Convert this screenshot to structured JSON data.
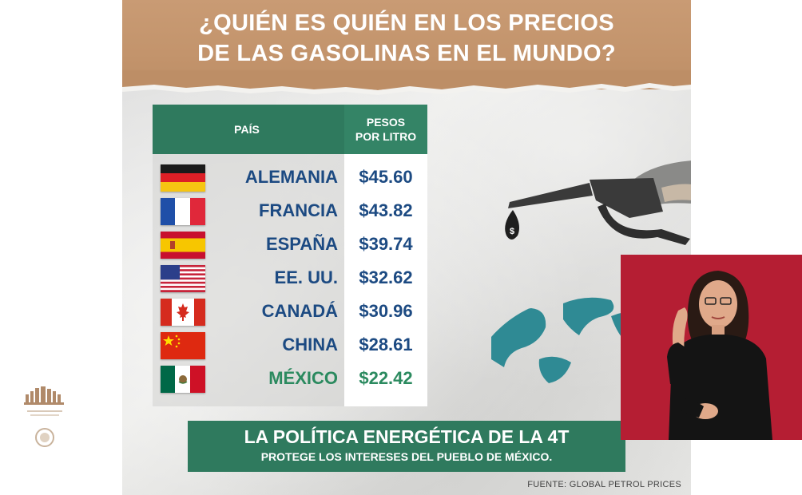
{
  "slide": {
    "title_line1": "¿QUIÉN ES QUIÉN EN LOS PRECIOS",
    "title_line2": "DE LAS GASOLINAS EN EL MUNDO?",
    "table": {
      "header_country": "PAÍS",
      "header_price_line1": "PESOS",
      "header_price_line2": "POR LITRO",
      "rows": [
        {
          "country": "ALEMANIA",
          "price": "$45.60",
          "flag": "germany-flag-icon"
        },
        {
          "country": "FRANCIA",
          "price": "$43.82",
          "flag": "france-flag-icon"
        },
        {
          "country": "ESPAÑA",
          "price": "$39.74",
          "flag": "spain-flag-icon"
        },
        {
          "country": "EE. UU.",
          "price": "$32.62",
          "flag": "usa-flag-icon"
        },
        {
          "country": "CANADÁ",
          "price": "$30.96",
          "flag": "canada-flag-icon"
        },
        {
          "country": "CHINA",
          "price": "$28.61",
          "flag": "china-flag-icon"
        },
        {
          "country": "MÉXICO",
          "price": "$22.42",
          "flag": "mexico-flag-icon"
        }
      ]
    },
    "banner_line1": "LA POLÍTICA ENERGÉTICA DE LA 4T",
    "banner_line2": "PROTEGE LOS INTERESES DEL PUEBLO DE MÉXICO.",
    "source": "FUENTE: GLOBAL PETROL PRICES",
    "pump_drop_symbol": "$"
  },
  "colors": {
    "header_brown": "#c3946c",
    "table_green": "#2f7a5e",
    "country_blue": "#1c4a82",
    "mexico_green": "#2b8a5f",
    "interpreter_red": "#b71f34"
  },
  "icons": [
    "fuel-nozzle-icon",
    "globe-icon",
    "gobierno-de-mexico-logo-icon",
    "interpreter-video"
  ]
}
